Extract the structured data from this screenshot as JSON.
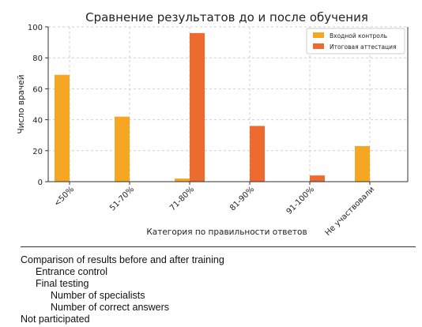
{
  "chart_data": {
    "type": "bar",
    "title": "Сравнение результатов до и после обучения",
    "xlabel": "Категория по правильности ответов",
    "ylabel": "Число врачей",
    "categories": [
      "<50%",
      "51-70%",
      "71-80%",
      "81-90%",
      "91-100%",
      "Не участвовали"
    ],
    "series": [
      {
        "name": "Входной контроль",
        "color": "#f5a623",
        "values": [
          69,
          42,
          2,
          0,
          0,
          23
        ]
      },
      {
        "name": "Итоговая аттестация",
        "color": "#ee6b2f",
        "values": [
          0,
          0,
          96,
          36,
          4,
          0
        ]
      }
    ],
    "ylim": [
      0,
      100
    ],
    "yticks": [
      0,
      20,
      40,
      60,
      80,
      100
    ],
    "grid": true,
    "legend_position": "top-right"
  },
  "caption": {
    "title": "Comparison of results before and after training",
    "series_1": "Entrance control",
    "series_2": "Final testing",
    "ylabel": "Number of specialists",
    "xlabel": "Number of correct answers",
    "not_participated": "Not participated"
  }
}
